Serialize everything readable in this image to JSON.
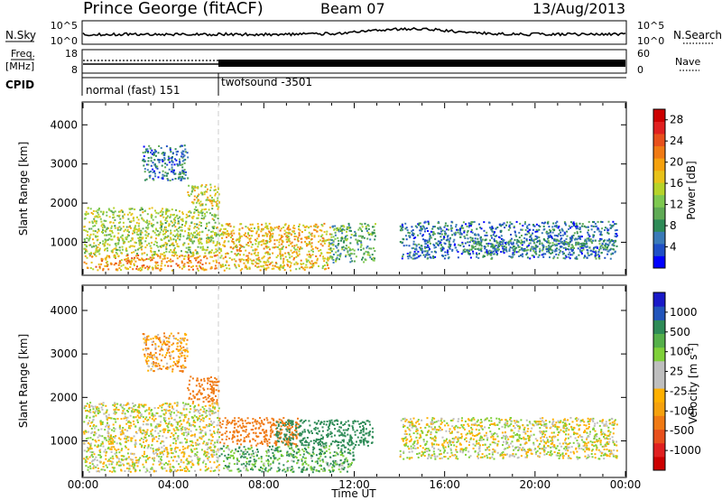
{
  "header": {
    "title": "Prince George (fitACF)",
    "beam": "Beam 07",
    "date": "13/Aug/2013"
  },
  "panels": {
    "nsky": {
      "left_label": "N.Sky",
      "right_label": "N.Search",
      "left_ticks": [
        "10^5",
        "10^0"
      ],
      "right_ticks": [
        "10^5",
        "10^0"
      ]
    },
    "freq": {
      "left_label_1": "Freq.",
      "left_label_2": "[MHz]",
      "right_label": "Nave",
      "left_ticks": [
        "18",
        "8"
      ],
      "right_ticks": [
        "60",
        "0"
      ]
    },
    "cpid": {
      "label": "CPID",
      "segments": [
        {
          "start": "00:00",
          "end": "06:00",
          "text": "normal (fast) 151"
        },
        {
          "start": "06:00",
          "end": "24:00",
          "text": "twofsound -3501"
        }
      ]
    }
  },
  "chart_data": [
    {
      "type": "heatmap",
      "title": "",
      "xlabel": "",
      "ylabel": "Slant Range [km]",
      "x_ticks": [
        "00:00",
        "04:00",
        "08:00",
        "12:00",
        "16:00",
        "20:00",
        "00:00"
      ],
      "x_range_hours": [
        0,
        24
      ],
      "y_ticks": [
        1000,
        2000,
        3000,
        4000
      ],
      "ylim": [
        180,
        4560
      ],
      "colorbar": {
        "label": "Power [dB]",
        "tick_labels": [
          "4",
          "8",
          "12",
          "16",
          "20",
          "24",
          "28"
        ],
        "range": [
          0,
          30
        ],
        "colors": [
          "#0000ff",
          "#1f4fc6",
          "#3a7ab8",
          "#2e8b57",
          "#5faa55",
          "#7ec850",
          "#b6d32a",
          "#e8c21a",
          "#f5a10e",
          "#f07a14",
          "#e8501c",
          "#e02020",
          "#cc0000"
        ]
      },
      "regions": [
        {
          "t0": 0.0,
          "t1": 6.0,
          "r0": 700,
          "r1": 1900,
          "value": 14
        },
        {
          "t0": 0.0,
          "t1": 6.0,
          "r0": 300,
          "r1": 700,
          "value": 20
        },
        {
          "t0": 2.6,
          "t1": 4.6,
          "r0": 2600,
          "r1": 3500,
          "value": 6
        },
        {
          "t0": 4.6,
          "t1": 6.0,
          "r0": 1900,
          "r1": 2500,
          "value": 16
        },
        {
          "t0": 6.0,
          "t1": 10.9,
          "r0": 300,
          "r1": 1500,
          "value": 18
        },
        {
          "t0": 10.9,
          "t1": 12.9,
          "r0": 500,
          "r1": 1500,
          "value": 10
        },
        {
          "t0": 14.0,
          "t1": 23.6,
          "r0": 600,
          "r1": 1550,
          "value": 6
        },
        {
          "t0": 17.0,
          "t1": 23.5,
          "r0": 800,
          "r1": 1100,
          "value": 8
        }
      ]
    },
    {
      "type": "heatmap",
      "title": "",
      "xlabel": "Time UT",
      "ylabel": "Slant Range [km]",
      "x_ticks": [
        "00:00",
        "04:00",
        "08:00",
        "12:00",
        "16:00",
        "20:00",
        "00:00"
      ],
      "x_range_hours": [
        0,
        24
      ],
      "y_ticks": [
        1000,
        2000,
        3000,
        4000
      ],
      "ylim": [
        180,
        4560
      ],
      "colorbar": {
        "label": "Velocity [m s^-1]",
        "tick_labels": [
          "1000",
          "500",
          "100",
          "25",
          "-25",
          "-100",
          "-500",
          "-1000"
        ],
        "colors": [
          "#1a1ac8",
          "#2255bb",
          "#2e8b57",
          "#55b04a",
          "#7fd03a",
          "#bebebe",
          "#bebebe",
          "#ffb000",
          "#f5a10e",
          "#f07a14",
          "#e8501c",
          "#e02020",
          "#cc0000"
        ]
      },
      "regions": [
        {
          "t0": 0.0,
          "t1": 6.0,
          "r0": 700,
          "r1": 1900,
          "value": 0
        },
        {
          "t0": 0.0,
          "t1": 6.0,
          "r0": 300,
          "r1": 700,
          "value": 0
        },
        {
          "t0": 2.6,
          "t1": 4.6,
          "r0": 2600,
          "r1": 3500,
          "value": -100
        },
        {
          "t0": 4.6,
          "t1": 6.0,
          "r0": 1900,
          "r1": 2500,
          "value": -300
        },
        {
          "t0": 6.0,
          "t1": 9.5,
          "r0": 900,
          "r1": 1550,
          "value": -300
        },
        {
          "t0": 8.5,
          "t1": 12.8,
          "r0": 900,
          "r1": 1500,
          "value": 200
        },
        {
          "t0": 6.0,
          "t1": 12.0,
          "r0": 300,
          "r1": 900,
          "value": 100
        },
        {
          "t0": 14.0,
          "t1": 23.6,
          "r0": 600,
          "r1": 1550,
          "value": 0
        }
      ]
    }
  ]
}
